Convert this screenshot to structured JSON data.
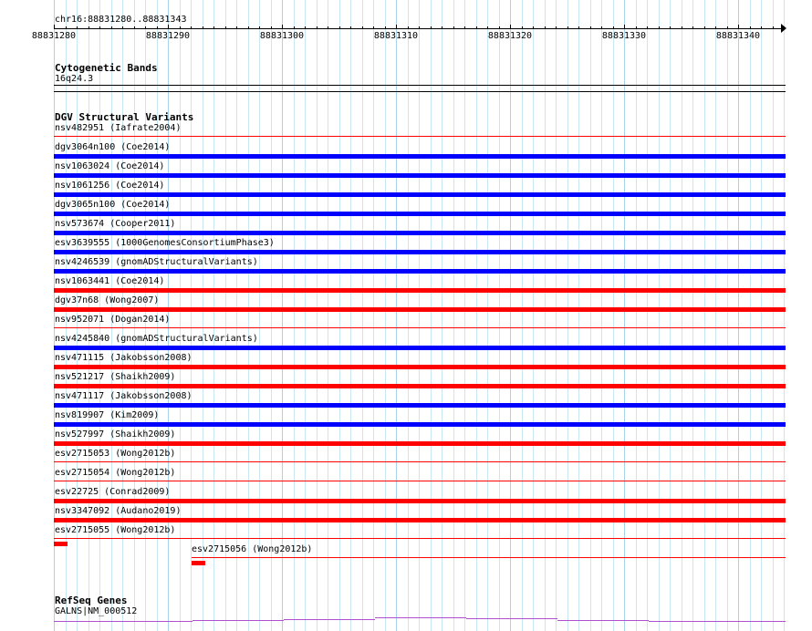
{
  "ruler": {
    "range_label": "chr16:88831280..88831343",
    "ticks": [
      "88831280",
      "88831290",
      "88831300",
      "88831310",
      "88831320",
      "88831330",
      "88831340"
    ]
  },
  "cytoband": {
    "title": "Cytogenetic Bands",
    "band": "16q24.3"
  },
  "dgv": {
    "title": "DGV Structural Variants",
    "colors": {
      "loss": "#ff0000",
      "gain": "#0000ff"
    },
    "variants": [
      {
        "label": "nsv482951 (Iafrate2004)",
        "type": "loss",
        "bar": "thin"
      },
      {
        "label": "dgv3064n100 (Coe2014)",
        "type": "gain",
        "bar": "thick"
      },
      {
        "label": "nsv1063024 (Coe2014)",
        "type": "gain",
        "bar": "thick"
      },
      {
        "label": "nsv1061256 (Coe2014)",
        "type": "gain",
        "bar": "thick"
      },
      {
        "label": "dgv3065n100 (Coe2014)",
        "type": "gain",
        "bar": "thick"
      },
      {
        "label": "nsv573674 (Cooper2011)",
        "type": "gain",
        "bar": "thick"
      },
      {
        "label": "esv3639555 (1000GenomesConsortiumPhase3)",
        "type": "gain",
        "bar": "thick"
      },
      {
        "label": "nsv4246539 (gnomADStructuralVariants)",
        "type": "gain",
        "bar": "thick"
      },
      {
        "label": "nsv1063441 (Coe2014)",
        "type": "loss",
        "bar": "thick"
      },
      {
        "label": "dgv37n68 (Wong2007)",
        "type": "loss",
        "bar": "thick"
      },
      {
        "label": "nsv952071 (Dogan2014)",
        "type": "loss",
        "bar": "thin"
      },
      {
        "label": "nsv4245840 (gnomADStructuralVariants)",
        "type": "gain",
        "bar": "thick"
      },
      {
        "label": "nsv471115 (Jakobsson2008)",
        "type": "loss",
        "bar": "thick"
      },
      {
        "label": "nsv521217 (Shaikh2009)",
        "type": "loss",
        "bar": "thick"
      },
      {
        "label": "nsv471117 (Jakobsson2008)",
        "type": "gain",
        "bar": "thick"
      },
      {
        "label": "nsv819907 (Kim2009)",
        "type": "gain",
        "bar": "thick"
      },
      {
        "label": "nsv527997 (Shaikh2009)",
        "type": "loss",
        "bar": "thick"
      },
      {
        "label": "esv2715053 (Wong2012b)",
        "type": "loss",
        "bar": "thin"
      },
      {
        "label": "esv2715054 (Wong2012b)",
        "type": "loss",
        "bar": "thin"
      },
      {
        "label": "esv22725 (Conrad2009)",
        "type": "loss",
        "bar": "thick"
      },
      {
        "label": "nsv3347092 (Audano2019)",
        "type": "loss",
        "bar": "thick"
      },
      {
        "label": "esv2715055 (Wong2012b)",
        "type": "loss",
        "bar": "thin",
        "stub": "left"
      },
      {
        "label": "esv2715056 (Wong2012b)",
        "type": "loss",
        "bar": "thin",
        "stub": "mid"
      }
    ]
  },
  "refseq": {
    "title": "RefSeq Genes",
    "gene": "GALNS|NM_000512",
    "color": "#b04fcf"
  }
}
